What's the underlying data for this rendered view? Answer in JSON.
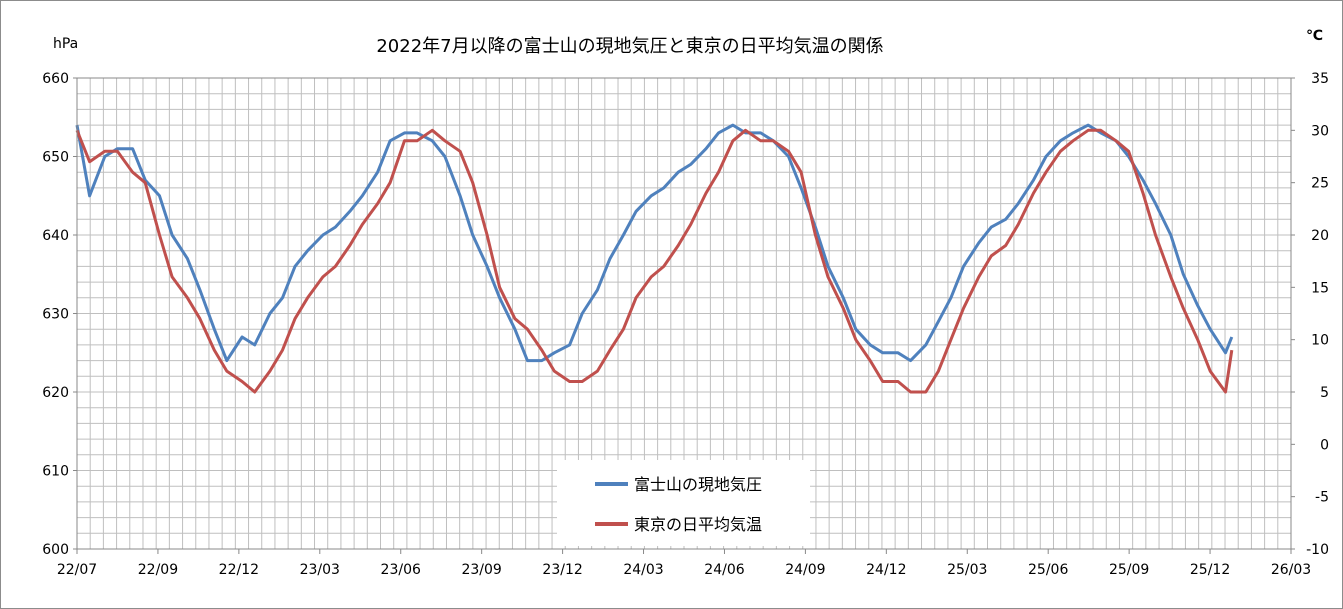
{
  "chart_data": {
    "type": "line",
    "title": "2022年7月以降の富士山の現地気圧と東京の日平均気温の関係",
    "y_left_unit": "hPa",
    "y_right_unit": "℃",
    "y_left_ticks": [
      "600",
      "610",
      "620",
      "630",
      "640",
      "650",
      "660"
    ],
    "y_right_ticks": [
      "-10",
      "-5",
      "0",
      "5",
      "10",
      "15",
      "20",
      "25",
      "30",
      "35"
    ],
    "x_ticks": [
      "22/07",
      "22/09",
      "22/12",
      "23/03",
      "23/06",
      "23/09",
      "23/12",
      "24/03",
      "24/06",
      "24/09",
      "24/12",
      "25/03",
      "25/06",
      "25/09",
      "25/12",
      "26/03"
    ],
    "y_left_range": [
      600,
      660
    ],
    "y_right_range": [
      -10,
      35
    ],
    "x_range": [
      "2022-07-01",
      "2026-03-15"
    ],
    "grid": true,
    "legend_position": "bottom-center",
    "colors": {
      "pressure": "#4f81bd",
      "temperature": "#c0504d"
    },
    "series": [
      {
        "name": "富士山の現地気圧",
        "axis": "left",
        "color": "#4f81bd",
        "x": [
          "2022-07-01",
          "2022-07-15",
          "2022-08-01",
          "2022-08-15",
          "2022-09-01",
          "2022-09-15",
          "2022-10-01",
          "2022-10-15",
          "2022-11-01",
          "2022-11-15",
          "2022-12-01",
          "2022-12-15",
          "2023-01-01",
          "2023-01-15",
          "2023-02-01",
          "2023-02-15",
          "2023-03-01",
          "2023-03-15",
          "2023-04-01",
          "2023-04-15",
          "2023-05-01",
          "2023-05-15",
          "2023-06-01",
          "2023-06-15",
          "2023-07-01",
          "2023-07-15",
          "2023-08-01",
          "2023-08-15",
          "2023-09-01",
          "2023-09-15",
          "2023-10-01",
          "2023-10-15",
          "2023-11-01",
          "2023-11-15",
          "2023-12-01",
          "2023-12-15",
          "2024-01-01",
          "2024-01-15",
          "2024-02-01",
          "2024-02-15",
          "2024-03-01",
          "2024-03-15",
          "2024-04-01",
          "2024-04-15",
          "2024-05-01",
          "2024-05-15",
          "2024-06-01",
          "2024-06-15",
          "2024-07-01",
          "2024-07-15",
          "2024-08-01",
          "2024-08-15",
          "2024-09-01",
          "2024-09-15",
          "2024-10-01",
          "2024-10-15",
          "2024-11-01",
          "2024-11-15",
          "2024-12-01",
          "2024-12-15",
          "2025-01-01",
          "2025-01-15",
          "2025-02-01",
          "2025-02-15",
          "2025-03-01",
          "2025-03-15",
          "2025-04-01",
          "2025-04-15",
          "2025-05-01",
          "2025-05-15",
          "2025-06-01",
          "2025-06-15",
          "2025-07-01",
          "2025-07-15",
          "2025-08-01",
          "2025-08-15",
          "2025-09-01",
          "2025-09-15",
          "2025-10-01",
          "2025-10-15",
          "2025-11-01",
          "2025-11-15",
          "2025-12-01",
          "2025-12-15",
          "2026-01-01",
          "2026-01-08"
        ],
        "values": [
          654,
          645,
          650,
          651,
          651,
          647,
          645,
          640,
          637,
          633,
          628,
          624,
          627,
          626,
          630,
          632,
          636,
          638,
          640,
          641,
          643,
          645,
          648,
          652,
          653,
          653,
          652,
          650,
          645,
          640,
          636,
          632,
          628,
          624,
          624,
          625,
          626,
          630,
          633,
          637,
          640,
          643,
          645,
          646,
          648,
          649,
          651,
          653,
          654,
          653,
          653,
          652,
          650,
          646,
          641,
          636,
          632,
          628,
          626,
          625,
          625,
          624,
          626,
          629,
          632,
          636,
          639,
          641,
          642,
          644,
          647,
          650,
          652,
          653,
          654,
          653,
          652,
          650,
          647,
          644,
          640,
          635,
          631,
          628,
          625,
          627
        ]
      },
      {
        "name": "東京の日平均気温",
        "axis": "right",
        "color": "#c0504d",
        "x": [
          "2022-07-01",
          "2022-07-15",
          "2022-08-01",
          "2022-08-15",
          "2022-09-01",
          "2022-09-15",
          "2022-10-01",
          "2022-10-15",
          "2022-11-01",
          "2022-11-15",
          "2022-12-01",
          "2022-12-15",
          "2023-01-01",
          "2023-01-15",
          "2023-02-01",
          "2023-02-15",
          "2023-03-01",
          "2023-03-15",
          "2023-04-01",
          "2023-04-15",
          "2023-05-01",
          "2023-05-15",
          "2023-06-01",
          "2023-06-15",
          "2023-07-01",
          "2023-07-15",
          "2023-08-01",
          "2023-08-15",
          "2023-09-01",
          "2023-09-15",
          "2023-10-01",
          "2023-10-15",
          "2023-11-01",
          "2023-11-15",
          "2023-12-01",
          "2023-12-15",
          "2024-01-01",
          "2024-01-15",
          "2024-02-01",
          "2024-02-15",
          "2024-03-01",
          "2024-03-15",
          "2024-04-01",
          "2024-04-15",
          "2024-05-01",
          "2024-05-15",
          "2024-06-01",
          "2024-06-15",
          "2024-07-01",
          "2024-07-15",
          "2024-08-01",
          "2024-08-15",
          "2024-09-01",
          "2024-09-15",
          "2024-10-01",
          "2024-10-15",
          "2024-11-01",
          "2024-11-15",
          "2024-12-01",
          "2024-12-15",
          "2025-01-01",
          "2025-01-15",
          "2025-02-01",
          "2025-02-15",
          "2025-03-01",
          "2025-03-15",
          "2025-04-01",
          "2025-04-15",
          "2025-05-01",
          "2025-05-15",
          "2025-06-01",
          "2025-06-15",
          "2025-07-01",
          "2025-07-15",
          "2025-08-01",
          "2025-08-15",
          "2025-09-01",
          "2025-09-15",
          "2025-10-01",
          "2025-10-15",
          "2025-11-01",
          "2025-11-15",
          "2025-12-01",
          "2025-12-15",
          "2026-01-01",
          "2026-01-08"
        ],
        "values": [
          30,
          27,
          28,
          28,
          26,
          25,
          20,
          16,
          14,
          12,
          9,
          7,
          6,
          5,
          7,
          9,
          12,
          14,
          16,
          17,
          19,
          21,
          23,
          25,
          29,
          29,
          30,
          29,
          28,
          25,
          20,
          15,
          12,
          11,
          9,
          7,
          6,
          6,
          7,
          9,
          11,
          14,
          16,
          17,
          19,
          21,
          24,
          26,
          29,
          30,
          29,
          29,
          28,
          26,
          20,
          16,
          13,
          10,
          8,
          6,
          6,
          5,
          5,
          7,
          10,
          13,
          16,
          18,
          19,
          21,
          24,
          26,
          28,
          29,
          30,
          30,
          29,
          28,
          24,
          20,
          16,
          13,
          10,
          7,
          5,
          9
        ]
      }
    ]
  }
}
